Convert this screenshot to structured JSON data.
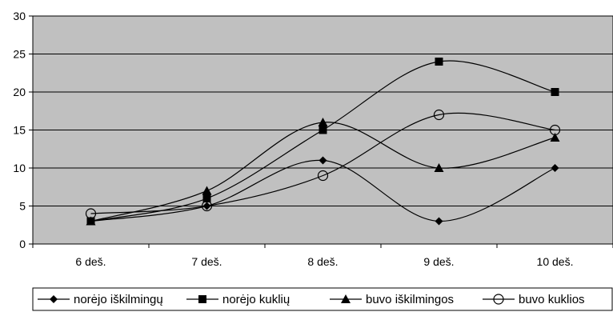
{
  "chart_data": {
    "type": "line",
    "title": "",
    "xlabel": "",
    "ylabel": "",
    "categories": [
      "6 deš.",
      "7 deš.",
      "8 deš.",
      "9 deš.",
      "10 deš."
    ],
    "ylim": [
      0,
      30
    ],
    "yticks": [
      "0",
      "5",
      "10",
      "15",
      "20",
      "25",
      "30"
    ],
    "grid": true,
    "smooth": true,
    "plot_background": "#c0c0c0",
    "line_color": "#000000",
    "legend_position": "bottom",
    "series": [
      {
        "name": "norėjo iškilmingų",
        "marker": "diamond",
        "values": [
          3,
          5,
          11,
          3,
          10
        ]
      },
      {
        "name": "norėjo kuklių",
        "marker": "square",
        "values": [
          3,
          6,
          15,
          24,
          20
        ]
      },
      {
        "name": "buvo iškilmingos",
        "marker": "triangle",
        "values": [
          3,
          7,
          16,
          10,
          14
        ]
      },
      {
        "name": "buvo kuklios",
        "marker": "circle",
        "values": [
          4,
          5,
          9,
          17,
          15
        ]
      }
    ]
  }
}
